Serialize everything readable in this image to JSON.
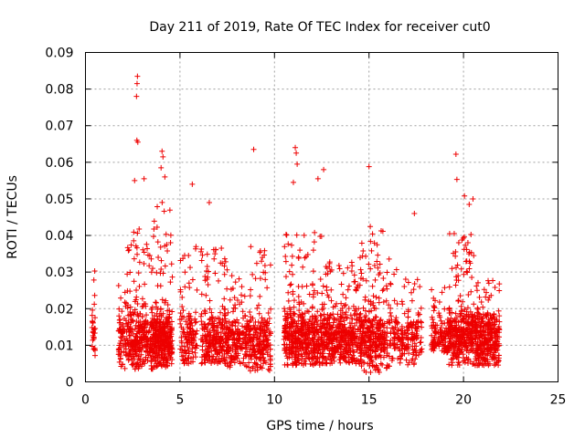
{
  "chart_data": {
    "type": "scatter",
    "title": "Day 211 of 2019, Rate Of TEC Index for receiver cut0",
    "xlabel": "GPS time / hours",
    "ylabel": "ROTI / TECUs",
    "xlim": [
      0,
      25
    ],
    "ylim": [
      0,
      0.09
    ],
    "grid": true,
    "marker": "+",
    "color": "#ee0000",
    "x_ticks": [
      "0",
      "5",
      "10",
      "15",
      "20",
      "25"
    ],
    "y_ticks": [
      "0",
      "0.01",
      "0.02",
      "0.03",
      "0.04",
      "0.05",
      "0.06",
      "0.07",
      "0.08",
      "0.09"
    ],
    "outliers": [
      {
        "x": 2.75,
        "y": 0.0835
      },
      {
        "x": 2.73,
        "y": 0.0815
      },
      {
        "x": 2.7,
        "y": 0.078
      },
      {
        "x": 2.72,
        "y": 0.066
      },
      {
        "x": 2.77,
        "y": 0.0655
      },
      {
        "x": 2.6,
        "y": 0.055
      },
      {
        "x": 3.1,
        "y": 0.0555
      },
      {
        "x": 4.05,
        "y": 0.063
      },
      {
        "x": 4.1,
        "y": 0.0615
      },
      {
        "x": 4.0,
        "y": 0.0585
      },
      {
        "x": 4.2,
        "y": 0.056
      },
      {
        "x": 5.65,
        "y": 0.054
      },
      {
        "x": 6.55,
        "y": 0.049
      },
      {
        "x": 8.9,
        "y": 0.0635
      },
      {
        "x": 11.1,
        "y": 0.064
      },
      {
        "x": 11.15,
        "y": 0.0625
      },
      {
        "x": 11.2,
        "y": 0.0595
      },
      {
        "x": 11.0,
        "y": 0.0545
      },
      {
        "x": 12.6,
        "y": 0.058
      },
      {
        "x": 12.3,
        "y": 0.0555
      },
      {
        "x": 15.0,
        "y": 0.0588
      },
      {
        "x": 17.4,
        "y": 0.046
      },
      {
        "x": 19.6,
        "y": 0.0622
      },
      {
        "x": 19.65,
        "y": 0.0553
      },
      {
        "x": 20.05,
        "y": 0.0508
      },
      {
        "x": 20.5,
        "y": 0.05
      },
      {
        "x": 20.3,
        "y": 0.0485
      }
    ],
    "clusters": [
      {
        "start": 0.35,
        "end": 0.55,
        "count": 30,
        "base": 0.012,
        "spread": 0.024,
        "min": 0.0065
      },
      {
        "start": 1.75,
        "end": 2.2,
        "count": 70,
        "base": 0.012,
        "spread": 0.024,
        "min": 0.003
      },
      {
        "start": 2.2,
        "end": 3.6,
        "count": 320,
        "base": 0.012,
        "spread": 0.04,
        "min": 0.0035
      },
      {
        "start": 3.6,
        "end": 4.6,
        "count": 320,
        "base": 0.012,
        "spread": 0.048,
        "min": 0.004
      },
      {
        "start": 5.0,
        "end": 5.9,
        "count": 130,
        "base": 0.012,
        "spread": 0.032,
        "min": 0.005
      },
      {
        "start": 6.1,
        "end": 7.5,
        "count": 260,
        "base": 0.012,
        "spread": 0.032,
        "min": 0.005
      },
      {
        "start": 7.5,
        "end": 8.7,
        "count": 190,
        "base": 0.012,
        "spread": 0.025,
        "min": 0.004
      },
      {
        "start": 8.7,
        "end": 9.8,
        "count": 210,
        "base": 0.011,
        "spread": 0.034,
        "min": 0.003
      },
      {
        "start": 10.5,
        "end": 12.5,
        "count": 460,
        "base": 0.012,
        "spread": 0.038,
        "min": 0.0045
      },
      {
        "start": 12.5,
        "end": 14.5,
        "count": 410,
        "base": 0.012,
        "spread": 0.028,
        "min": 0.005
      },
      {
        "start": 14.5,
        "end": 15.8,
        "count": 300,
        "base": 0.012,
        "spread": 0.04,
        "min": 0.0025
      },
      {
        "start": 15.8,
        "end": 16.6,
        "count": 90,
        "base": 0.012,
        "spread": 0.032,
        "min": 0.0035
      },
      {
        "start": 16.6,
        "end": 17.8,
        "count": 140,
        "base": 0.012,
        "spread": 0.027,
        "min": 0.0045
      },
      {
        "start": 18.3,
        "end": 19.2,
        "count": 120,
        "base": 0.013,
        "spread": 0.018,
        "min": 0.008
      },
      {
        "start": 19.2,
        "end": 20.7,
        "count": 360,
        "base": 0.013,
        "spread": 0.036,
        "min": 0.0045
      },
      {
        "start": 20.7,
        "end": 21.9,
        "count": 300,
        "base": 0.012,
        "spread": 0.024,
        "min": 0.0045
      }
    ]
  }
}
